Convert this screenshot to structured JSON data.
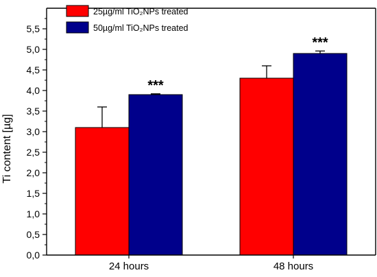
{
  "chart_data": {
    "type": "bar",
    "categories": [
      "24 hours",
      "48 hours"
    ],
    "series": [
      {
        "name": "25µg/ml TiO₂NPs treated",
        "color": "#ff0000",
        "values": [
          3.1,
          4.3
        ],
        "errors": [
          0.5,
          0.3
        ]
      },
      {
        "name": "50µg/ml TiO₂NPs treated",
        "color": "#00008b",
        "values": [
          3.9,
          4.9
        ],
        "errors": [
          0.02,
          0.06
        ]
      }
    ],
    "annotations": [
      {
        "text": "***",
        "category": 0,
        "series": 1
      },
      {
        "text": "***",
        "category": 1,
        "series": 1
      }
    ],
    "ylabel": "Ti content [µg]",
    "xlabel": "",
    "title": "",
    "ylim": [
      0,
      6
    ],
    "ytick_values": [
      0,
      0.5,
      1,
      1.5,
      2,
      2.5,
      3,
      3.5,
      4,
      4.5,
      5,
      5.5
    ],
    "ytick_labels": [
      "0,0",
      "0,5",
      "1,0",
      "1,5",
      "2,0",
      "2,5",
      "3,0",
      "3,5",
      "4,0",
      "4,5",
      "5,0",
      "5,5"
    ],
    "minor_ticks": true,
    "grid": false,
    "legend_position": "top-left"
  }
}
